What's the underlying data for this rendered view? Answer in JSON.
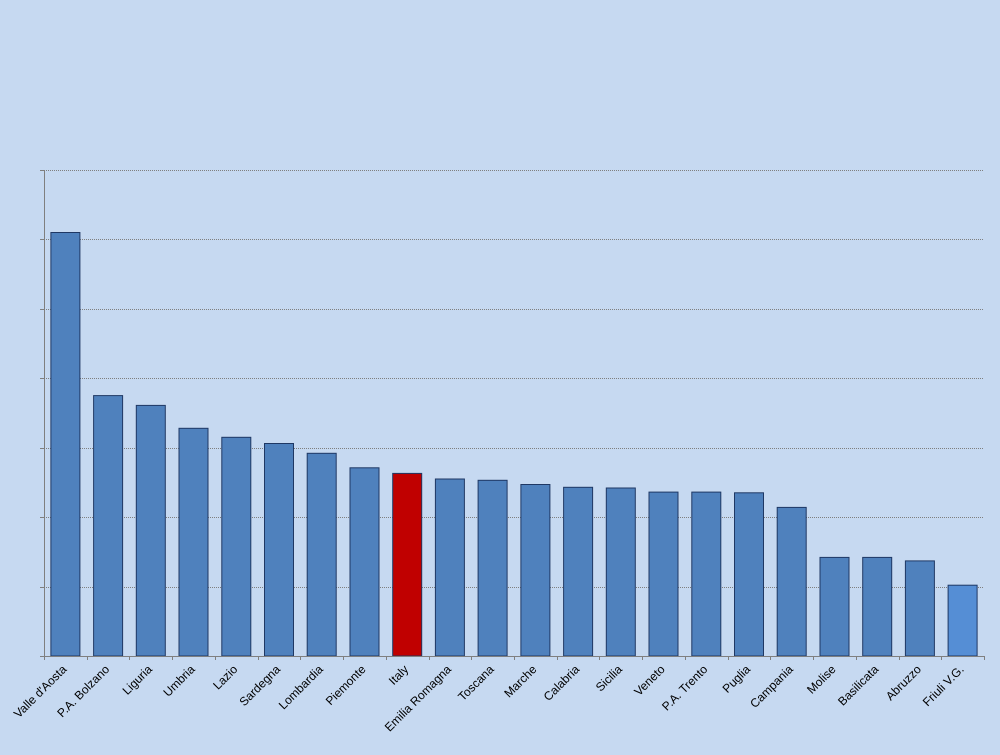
{
  "chart_data": {
    "type": "bar",
    "title": "",
    "xlabel": "",
    "ylabel": "",
    "ylim": [
      0,
      7
    ],
    "grid": true,
    "grid_style": "dotted",
    "y_tick_labels_visible": false,
    "colors": {
      "background": "#c6d9f1",
      "bar": "#4f81bd",
      "bar_highlight": "#c00000",
      "bar_last": "#558ed5",
      "bar_stroke": "#1f3864",
      "grid": "#7f7f7f",
      "axis": "#7f7f7f",
      "label": "#000000"
    },
    "categories": [
      "Valle d'Aosta",
      "P.A. Bolzano",
      "Liguria",
      "Umbria",
      "Lazio",
      "Sardegna",
      "Lombardia",
      "Piemonte",
      "Italy",
      "Emilia Romagna",
      "Toscana",
      "Marche",
      "Calabria",
      "Sicilia",
      "Veneto",
      "P.A. Trento",
      "Puglia",
      "Campania",
      "Molise",
      "Basilicata",
      "Abruzzo",
      "Friuli V.G."
    ],
    "values": [
      6.1,
      3.75,
      3.61,
      3.28,
      3.15,
      3.06,
      2.92,
      2.71,
      2.63,
      2.55,
      2.53,
      2.47,
      2.43,
      2.42,
      2.36,
      2.36,
      2.35,
      2.14,
      1.42,
      1.42,
      1.37,
      1.02
    ],
    "highlight_category": "Italy"
  }
}
